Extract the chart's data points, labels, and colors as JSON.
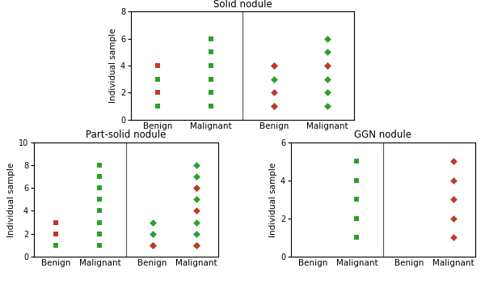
{
  "solid_title": "Solid nodule",
  "partsolid_title": "Part-solid nodule",
  "ggn_title": "GGN nodule",
  "ylabel": "Individual sample",
  "solid_left": {
    "benign_green": [
      1,
      3,
      4
    ],
    "benign_red": [
      2,
      4
    ],
    "malignant_green": [
      1,
      2,
      3,
      4,
      5,
      6
    ],
    "malignant_red": []
  },
  "solid_right": {
    "benign_green": [
      1,
      3,
      4
    ],
    "benign_red": [
      1,
      2,
      4
    ],
    "malignant_green": [
      1,
      2,
      3,
      4,
      5,
      6
    ],
    "malignant_red": [
      4
    ]
  },
  "partsolid_left": {
    "benign_green": [
      1,
      2
    ],
    "benign_red": [
      2,
      3
    ],
    "malignant_green": [
      1,
      2,
      3,
      4,
      5,
      6,
      7,
      8
    ],
    "malignant_red": []
  },
  "partsolid_right": {
    "benign_green": [
      1,
      2,
      3
    ],
    "benign_red": [
      1
    ],
    "malignant_green": [
      1,
      2,
      3,
      5,
      6,
      7,
      8
    ],
    "malignant_red": [
      1,
      4,
      6
    ]
  },
  "ggn_left": {
    "benign_green": [],
    "benign_red": [],
    "malignant_green": [
      1,
      2,
      3,
      4,
      5
    ],
    "malignant_red": []
  },
  "ggn_right": {
    "benign_green": [],
    "benign_red": [],
    "malignant_green": [],
    "malignant_red": [
      1,
      2,
      3,
      4,
      5
    ]
  },
  "green_color": "#2ca02c",
  "red_color": "#c0392b",
  "square_marker": "s",
  "diamond_marker": "D",
  "marker_size": 22,
  "diamond_size": 20,
  "divider_color": "#555555",
  "divider_lw": 0.8,
  "spine_lw": 0.8,
  "title_fontsize": 8.5,
  "label_fontsize": 7.5,
  "tick_fontsize": 7.0
}
